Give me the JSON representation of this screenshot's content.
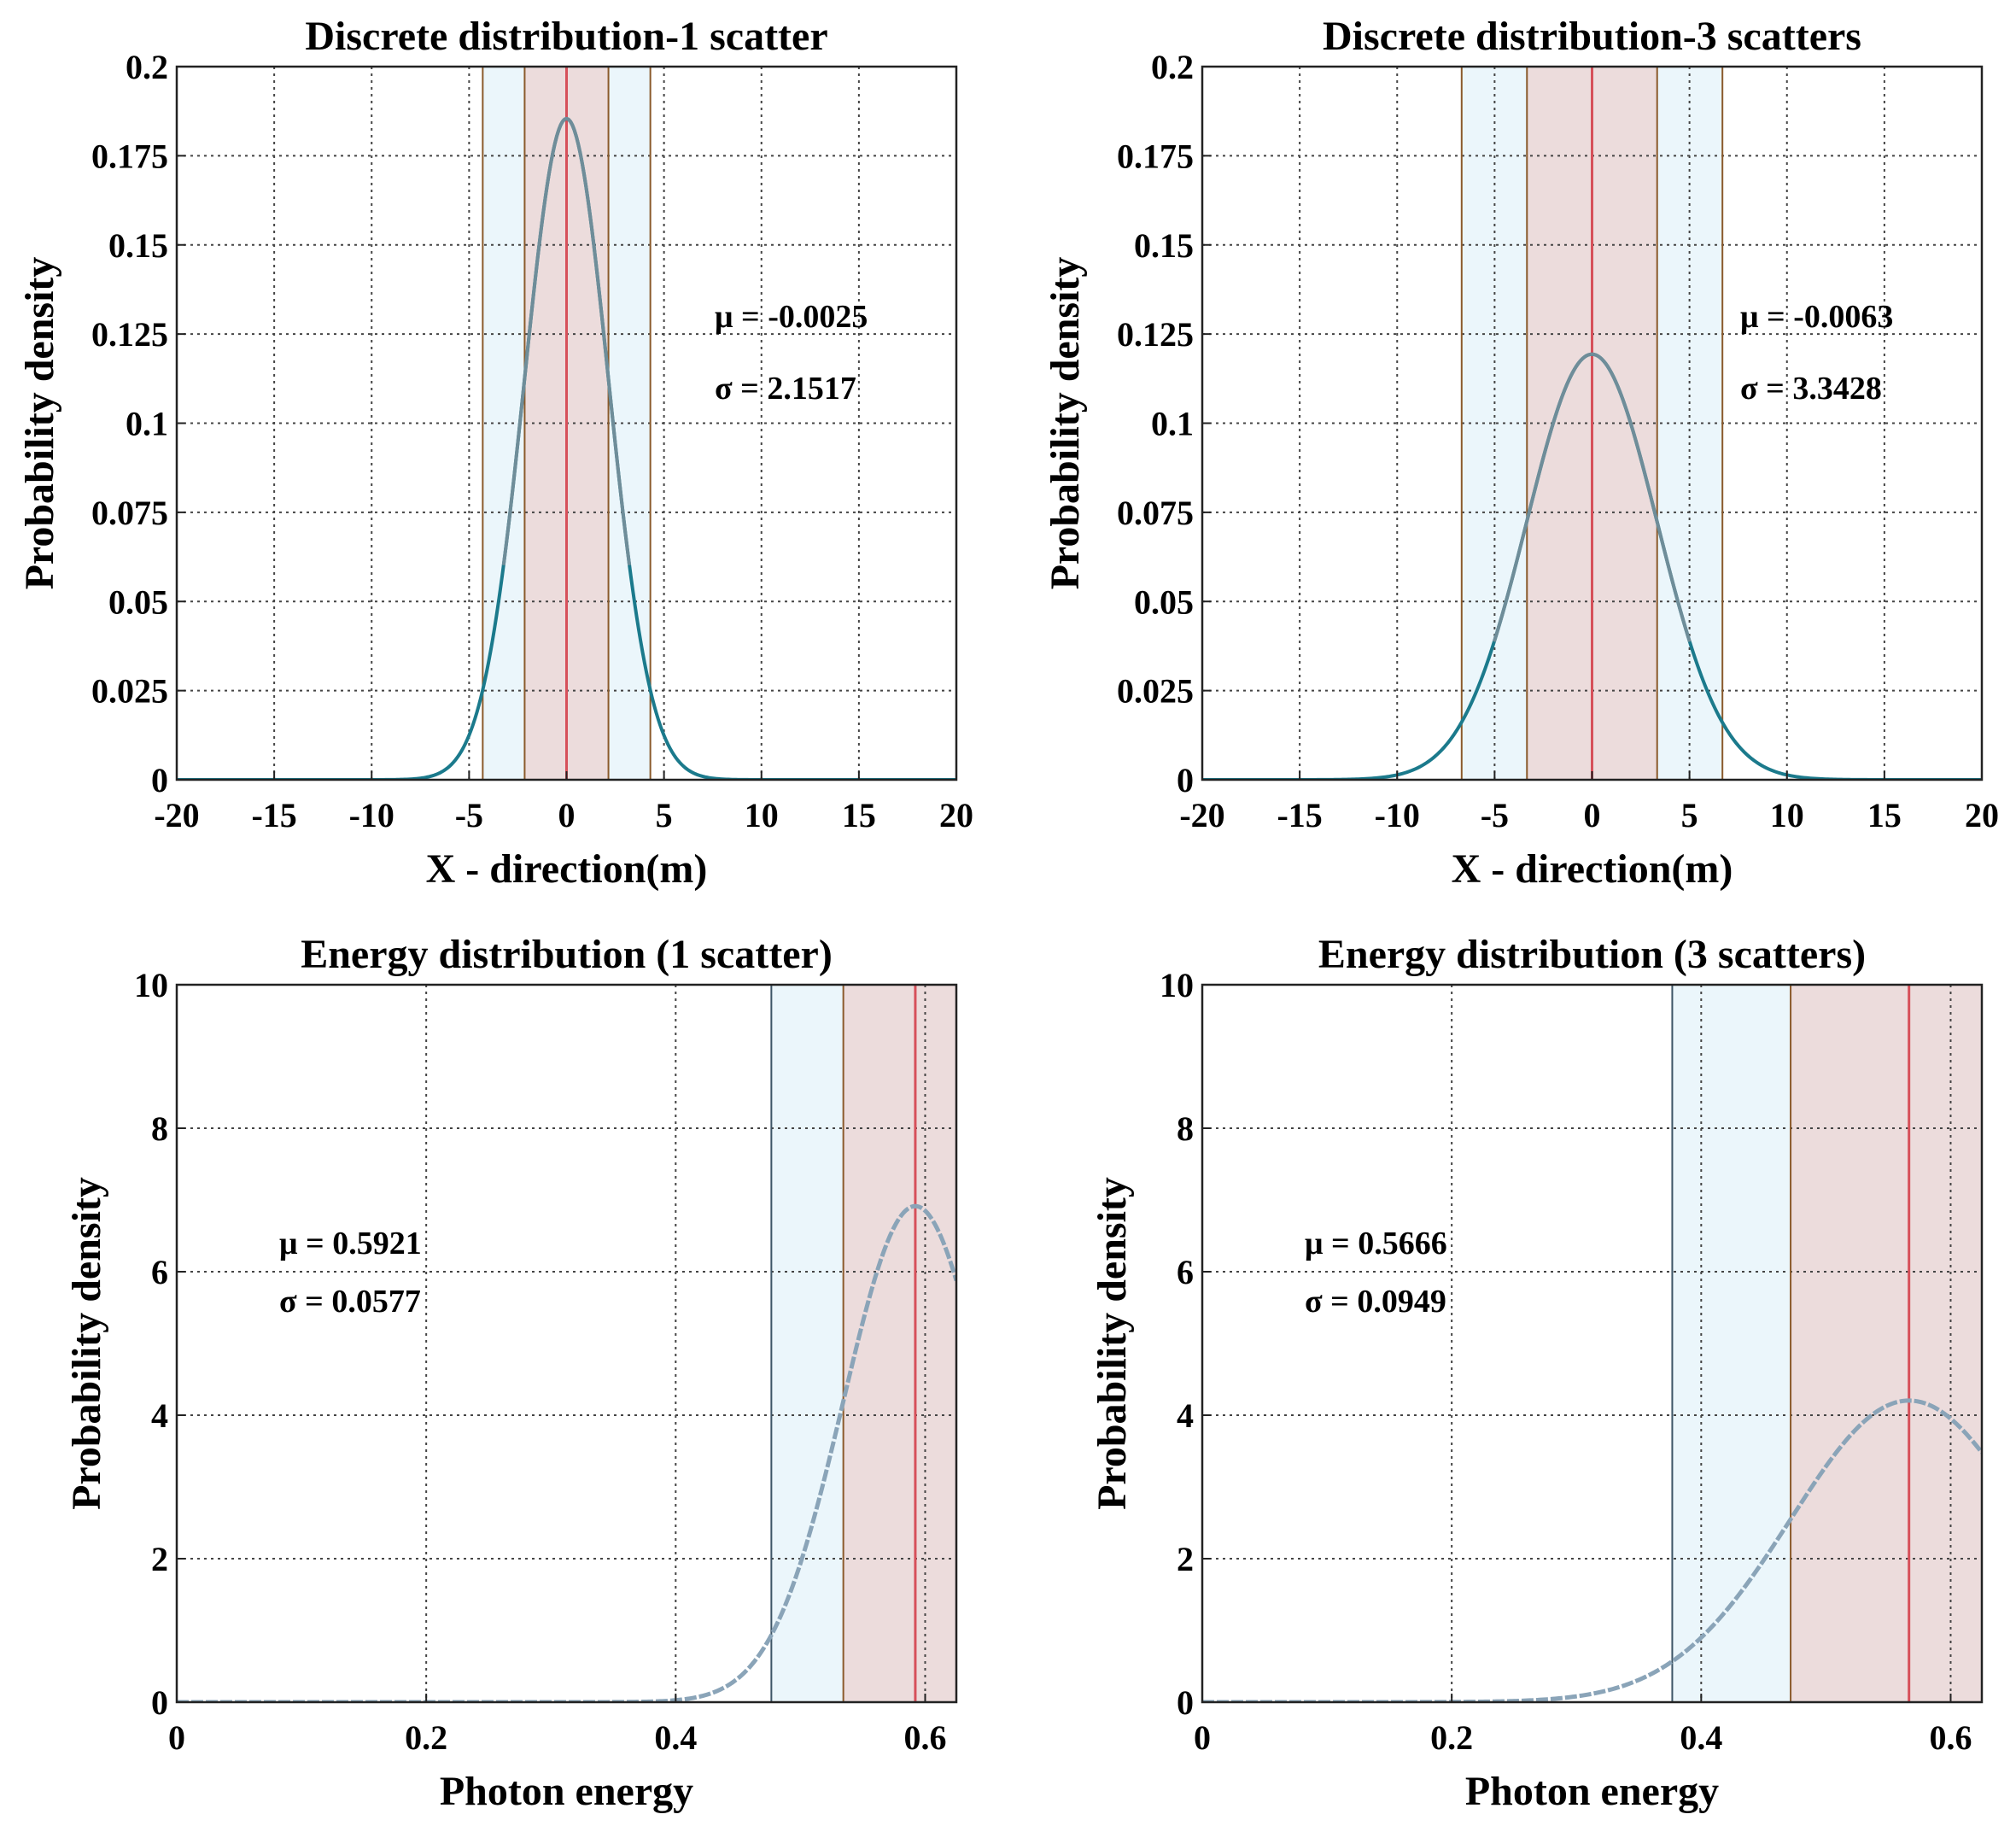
{
  "colors": {
    "curve_top": "#1b7a8c",
    "curve_bottom": "#8aa4b8",
    "peak_curve": "#6f8d99",
    "red_band": "#ecdcdc",
    "blue_band": "#ebf6fb",
    "mean_line": "#d6505a",
    "band_edge": "#8a5a2b",
    "grid": "#000000"
  },
  "chart_data": [
    {
      "type": "line",
      "title": "Discrete distribution-1 scatter",
      "xlabel": "X - direction(m)",
      "ylabel": "Probability density",
      "xlim": [
        -20,
        20
      ],
      "ylim": [
        0,
        0.2
      ],
      "xticks": [
        -20,
        -15,
        -10,
        -5,
        0,
        5,
        10,
        15,
        20
      ],
      "xtick_labels": [
        "-20",
        "-15",
        "-10",
        "-5",
        "0",
        "5",
        "10",
        "15",
        "20"
      ],
      "yticks": [
        0,
        0.025,
        0.05,
        0.075,
        0.1,
        0.125,
        0.15,
        0.175,
        0.2
      ],
      "ytick_labels": [
        "0",
        "0.025",
        "0.05",
        "0.075",
        "0.1",
        "0.125",
        "0.15",
        "0.175",
        "0.2"
      ],
      "distribution": "normal",
      "mu": -0.0025,
      "sigma": 2.1517,
      "mean_line_x": 0,
      "sigma_band_1": [
        -2.15,
        2.15
      ],
      "sigma_band_2": [
        -4.3,
        4.3
      ],
      "grid": true,
      "annotations": [
        "μ = -0.0025",
        "σ = 2.1517"
      ]
    },
    {
      "type": "line",
      "title": "Discrete distribution-3 scatters",
      "xlabel": "X - direction(m)",
      "ylabel": "Probability density",
      "xlim": [
        -20,
        20
      ],
      "ylim": [
        0,
        0.2
      ],
      "xticks": [
        -20,
        -15,
        -10,
        -5,
        0,
        5,
        10,
        15,
        20
      ],
      "xtick_labels": [
        "-20",
        "-15",
        "-10",
        "-5",
        "0",
        "5",
        "10",
        "15",
        "20"
      ],
      "yticks": [
        0,
        0.025,
        0.05,
        0.075,
        0.1,
        0.125,
        0.15,
        0.175,
        0.2
      ],
      "ytick_labels": [
        "0",
        "0.025",
        "0.05",
        "0.075",
        "0.1",
        "0.125",
        "0.15",
        "0.175",
        "0.2"
      ],
      "distribution": "normal",
      "mu": -0.0063,
      "sigma": 3.3428,
      "mean_line_x": 0,
      "sigma_band_1": [
        -3.34,
        3.34
      ],
      "sigma_band_2": [
        -6.69,
        6.69
      ],
      "grid": true,
      "annotations": [
        "μ = -0.0063",
        "σ = 3.3428"
      ]
    },
    {
      "type": "line",
      "title": "Energy distribution (1 scatter)",
      "xlabel": "Photon energy",
      "ylabel": "Probability density",
      "xlim": [
        0,
        0.625
      ],
      "ylim": [
        0,
        10
      ],
      "xticks": [
        0,
        0.2,
        0.4,
        0.6
      ],
      "xtick_labels": [
        "0",
        "0.2",
        "0.4",
        "0.6"
      ],
      "yticks": [
        0,
        2,
        4,
        6,
        8,
        10
      ],
      "ytick_labels": [
        "0",
        "2",
        "4",
        "6",
        "8",
        "10"
      ],
      "distribution": "normal",
      "mu": 0.5921,
      "sigma": 0.0577,
      "mean_line_x": 0.5921,
      "sigma_band_1": [
        0.5344,
        0.625
      ],
      "sigma_band_2": [
        0.4767,
        0.5344
      ],
      "grid": true,
      "annotations": [
        "μ = 0.5921",
        "σ = 0.0577"
      ]
    },
    {
      "type": "line",
      "title": "Energy distribution (3 scatters)",
      "xlabel": "Photon energy",
      "ylabel": "Probability density",
      "xlim": [
        0,
        0.625
      ],
      "ylim": [
        0,
        10
      ],
      "xticks": [
        0,
        0.2,
        0.4,
        0.6
      ],
      "xtick_labels": [
        "0",
        "0.2",
        "0.4",
        "0.6"
      ],
      "yticks": [
        0,
        2,
        4,
        6,
        8,
        10
      ],
      "ytick_labels": [
        "0",
        "2",
        "4",
        "6",
        "8",
        "10"
      ],
      "distribution": "normal",
      "mu": 0.5666,
      "sigma": 0.0949,
      "mean_line_x": 0.5666,
      "sigma_band_1": [
        0.4717,
        0.625
      ],
      "sigma_band_2": [
        0.3768,
        0.4717
      ],
      "grid": true,
      "annotations": [
        "μ = 0.5666",
        "σ = 0.0949"
      ]
    }
  ]
}
